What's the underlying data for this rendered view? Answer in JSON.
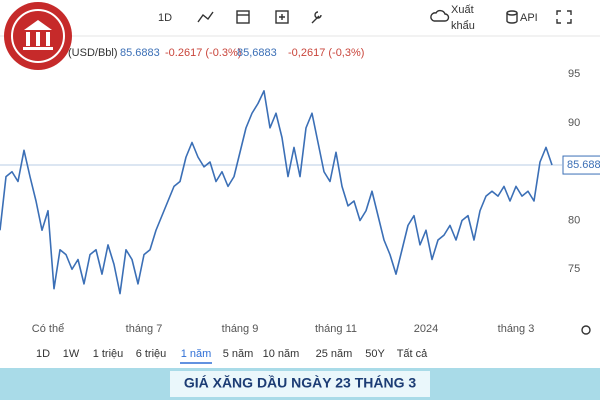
{
  "toolbar": {
    "interval": "1D",
    "export_line1": "Xuất",
    "export_line2": "khẩu",
    "api": "API"
  },
  "header": {
    "unit": "(USD/Bbl)",
    "price": "85.6883",
    "change": "-0.2617 (-0.3%)",
    "price_alt": "85,6883",
    "change_alt": "-0,2617 (-0,3%)"
  },
  "chart_data": {
    "type": "line",
    "color": "#3b6fb6",
    "categories": [
      null,
      null,
      null,
      null,
      null,
      null,
      null,
      null,
      "Có thể",
      null,
      null,
      null,
      null,
      null,
      null,
      null,
      null,
      null,
      null,
      null,
      null,
      null,
      null,
      null,
      "tháng 7",
      null,
      null,
      null,
      null,
      null,
      null,
      null,
      null,
      null,
      null,
      null,
      null,
      null,
      null,
      null,
      "tháng 9",
      null,
      null,
      null,
      null,
      null,
      null,
      null,
      null,
      null,
      null,
      null,
      null,
      null,
      null,
      null,
      "tháng 11",
      null,
      null,
      null,
      null,
      null,
      null,
      null,
      null,
      null,
      null,
      null,
      null,
      null,
      null,
      "2024",
      null,
      null,
      null,
      null,
      null,
      null,
      null,
      null,
      null,
      null,
      null,
      null,
      null,
      null,
      "tháng 3",
      null,
      null,
      null,
      null,
      null,
      null
    ],
    "values": [
      79,
      84.5,
      85,
      84,
      87.2,
      84.5,
      82,
      79,
      81,
      73,
      77,
      76.5,
      75,
      76,
      73.5,
      76.5,
      77,
      74.5,
      77.5,
      75.5,
      72.5,
      77,
      76,
      73.5,
      76.5,
      77,
      79,
      80.5,
      82,
      83.5,
      84,
      86.5,
      88,
      86.5,
      85.5,
      86,
      84,
      85,
      83.5,
      84.5,
      87,
      89.5,
      91,
      92,
      93.3,
      89.5,
      91,
      88.5,
      84.5,
      87.5,
      84.5,
      89.5,
      91,
      88,
      85,
      84,
      87,
      83.5,
      81.5,
      82,
      80,
      81,
      83,
      80.5,
      78,
      76.5,
      74.5,
      77,
      79.5,
      80.5,
      77.5,
      79,
      76,
      78,
      78.5,
      79.5,
      78,
      80,
      80.5,
      78,
      81,
      82.5,
      83,
      82.5,
      83.5,
      82,
      83.5,
      82.5,
      83,
      82,
      86,
      87.5,
      85.6883
    ],
    "price_label": "85.688",
    "ylim": [
      70,
      98
    ],
    "yticks": [
      75,
      80,
      85,
      90,
      95
    ],
    "grid": false
  },
  "ranges": [
    "1D",
    "1W",
    "1 triệu",
    "6 triệu",
    "1 năm",
    "5 năm",
    "10 năm",
    "25 năm",
    "50Y",
    "Tất cả"
  ],
  "active_range": 4,
  "banner": "GIÁ XĂNG DẦU NGÀY 23 THÁNG 3"
}
